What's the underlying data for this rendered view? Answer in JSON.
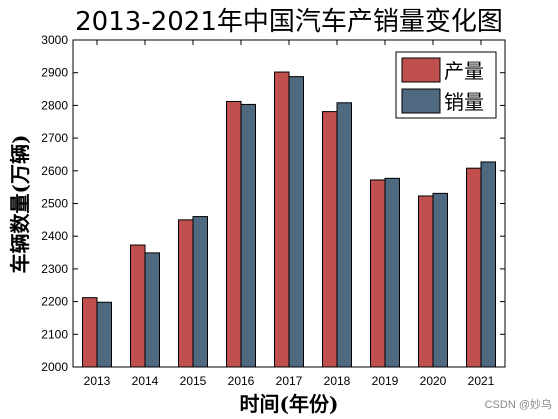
{
  "chart_data": {
    "type": "bar",
    "title": "2013-2021年中国汽车产销量变化图",
    "xlabel": "时间(年份)",
    "ylabel": "车辆数量(万辆)",
    "categories": [
      "2013",
      "2014",
      "2015",
      "2016",
      "2017",
      "2018",
      "2019",
      "2020",
      "2021"
    ],
    "series": [
      {
        "name": "产量",
        "color": "#c0504d",
        "values": [
          2212,
          2373,
          2450,
          2812,
          2902,
          2781,
          2572,
          2523,
          2608
        ]
      },
      {
        "name": "销量",
        "color": "#4f6980",
        "values": [
          2198,
          2349,
          2460,
          2803,
          2888,
          2808,
          2577,
          2531,
          2627
        ]
      }
    ],
    "ylim": [
      2000,
      3000
    ],
    "yticks": [
      2000,
      2100,
      2200,
      2300,
      2400,
      2500,
      2600,
      2700,
      2800,
      2900,
      3000
    ],
    "grid": false,
    "legend_position": "top-right"
  },
  "watermark": "CSDN @妙乌"
}
